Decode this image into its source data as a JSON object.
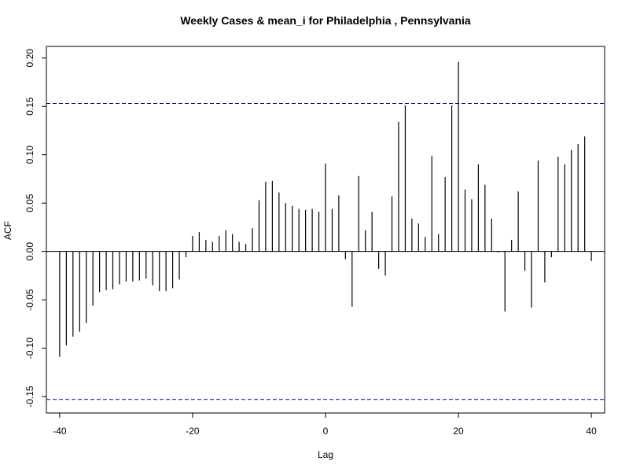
{
  "chart_data": {
    "type": "bar",
    "title": "Weekly Cases & mean_i for Philadelphia , Pennsylvania",
    "xlabel": "Lag",
    "ylabel": "ACF",
    "xlim": [
      -42,
      42
    ],
    "ylim": [
      -0.167,
      0.212
    ],
    "x_ticks": [
      -40,
      -20,
      0,
      20,
      40
    ],
    "x_tick_labels": [
      "-40",
      "-20",
      "0",
      "20",
      "40"
    ],
    "y_ticks": [
      -0.15,
      -0.1,
      -0.05,
      0.0,
      0.05,
      0.1,
      0.15,
      0.2
    ],
    "y_tick_labels": [
      "-0.15",
      "-0.10",
      "-0.05",
      "0.00",
      "0.05",
      "0.10",
      "0.15",
      "0.20"
    ],
    "confidence_bounds": [
      0.153,
      -0.153
    ],
    "grid": false,
    "colors": {
      "bars": "#000000",
      "confidence_line": "#00008b"
    },
    "x": [
      -40,
      -39,
      -38,
      -37,
      -36,
      -35,
      -34,
      -33,
      -32,
      -31,
      -30,
      -29,
      -28,
      -27,
      -26,
      -25,
      -24,
      -23,
      -22,
      -21,
      -20,
      -19,
      -18,
      -17,
      -16,
      -15,
      -14,
      -13,
      -12,
      -11,
      -10,
      -9,
      -8,
      -7,
      -6,
      -5,
      -4,
      -3,
      -2,
      -1,
      0,
      1,
      2,
      3,
      4,
      5,
      6,
      7,
      8,
      9,
      10,
      11,
      12,
      13,
      14,
      15,
      16,
      17,
      18,
      19,
      20,
      21,
      22,
      23,
      24,
      25,
      26,
      27,
      28,
      29,
      30,
      31,
      32,
      33,
      34,
      35,
      36,
      37,
      38,
      39,
      40
    ],
    "values": [
      -0.109,
      -0.097,
      -0.088,
      -0.083,
      -0.074,
      -0.056,
      -0.042,
      -0.04,
      -0.039,
      -0.034,
      -0.031,
      -0.031,
      -0.03,
      -0.028,
      -0.035,
      -0.041,
      -0.041,
      -0.038,
      -0.029,
      -0.006,
      0.016,
      0.02,
      0.012,
      0.01,
      0.016,
      0.022,
      0.018,
      0.01,
      0.008,
      0.024,
      0.053,
      0.072,
      0.073,
      0.061,
      0.05,
      0.047,
      0.044,
      0.043,
      0.044,
      0.041,
      0.091,
      0.044,
      0.058,
      -0.008,
      -0.057,
      0.078,
      0.022,
      0.041,
      -0.018,
      -0.025,
      0.057,
      0.134,
      0.151,
      0.034,
      0.029,
      0.015,
      0.099,
      0.018,
      0.077,
      0.151,
      0.196,
      0.064,
      0.054,
      0.09,
      0.069,
      0.034,
      -0.001,
      -0.062,
      0.012,
      0.062,
      -0.02,
      -0.058,
      0.094,
      -0.032,
      -0.006,
      0.098,
      0.09,
      0.105,
      0.111,
      0.119,
      -0.01
    ]
  }
}
